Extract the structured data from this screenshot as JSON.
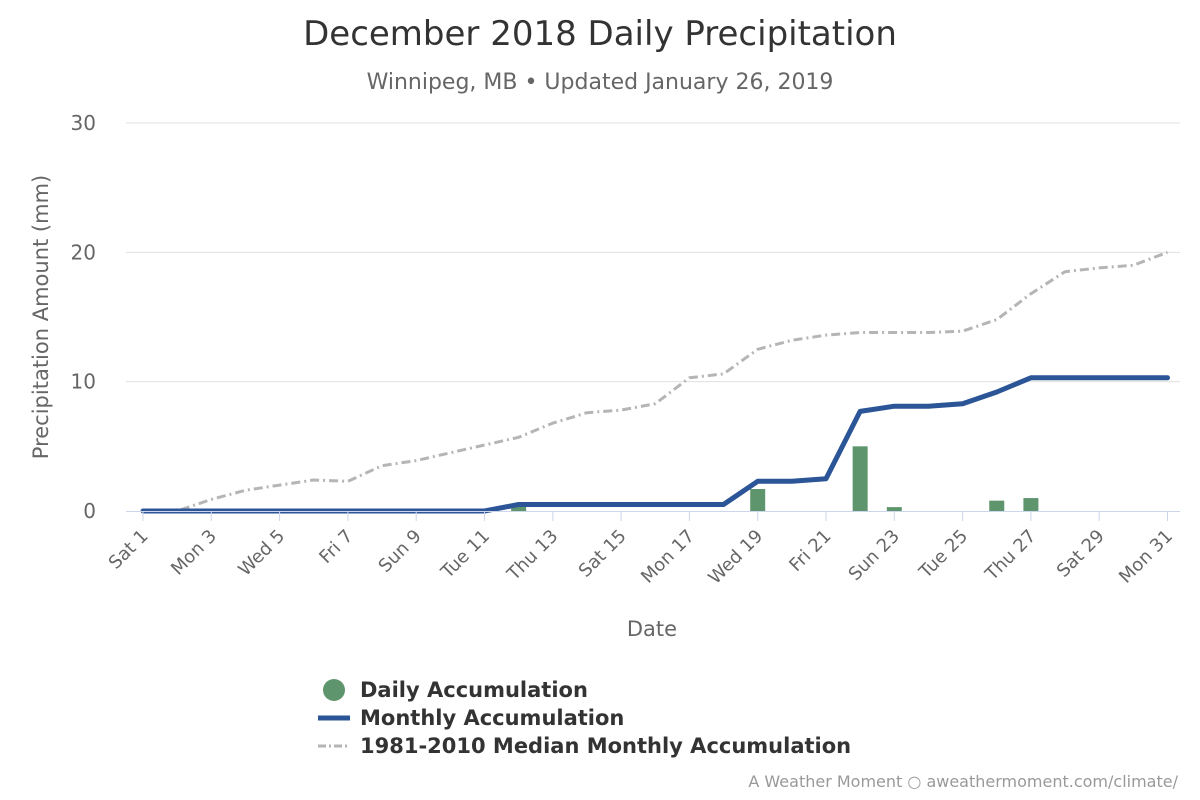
{
  "title": "December 2018 Daily Precipitation",
  "subtitle": "Winnipeg, MB • Updated January 26, 2019",
  "credit": "A Weather Moment ○ aweathermoment.com/climate/",
  "colors": {
    "daily": "#5f956c",
    "monthly": "#2b5596",
    "median": "#b5b5b5",
    "grid": "#e0e0e0",
    "axis": "#ccd6eb",
    "text": "#666666"
  },
  "chart_data": {
    "type": "bar+line",
    "xlabel": "Date",
    "ylabel": "Precipitation Amount (mm)",
    "ylim": [
      0,
      30
    ],
    "yticks": [
      0,
      10,
      20,
      30
    ],
    "grid": true,
    "legend_position": "bottom",
    "x": [
      1,
      2,
      3,
      4,
      5,
      6,
      7,
      8,
      9,
      10,
      11,
      12,
      13,
      14,
      15,
      16,
      17,
      18,
      19,
      20,
      21,
      22,
      23,
      24,
      25,
      26,
      27,
      28,
      29,
      30,
      31
    ],
    "xtick_labels": [
      "Sat 1",
      "Mon 3",
      "Wed 5",
      "Fri 7",
      "Sun 9",
      "Tue 11",
      "Thu 13",
      "Sat 15",
      "Mon 17",
      "Wed 19",
      "Fri 21",
      "Sun 23",
      "Tue 25",
      "Thu 27",
      "Sat 29",
      "Mon 31"
    ],
    "series": [
      {
        "name": "Daily Accumulation",
        "type": "bar",
        "values": [
          0,
          0,
          0,
          0,
          0,
          0,
          0,
          0,
          0,
          0,
          0,
          0.4,
          0,
          0,
          0,
          0,
          0,
          0,
          1.7,
          0,
          0,
          5.0,
          0.3,
          0,
          0,
          0.8,
          1.0,
          0,
          0,
          0,
          0
        ]
      },
      {
        "name": "Monthly Accumulation",
        "type": "line",
        "values": [
          0,
          0,
          0,
          0,
          0,
          0,
          0,
          0,
          0,
          0,
          0,
          0.5,
          0.5,
          0.5,
          0.5,
          0.5,
          0.5,
          0.5,
          2.3,
          2.3,
          2.5,
          7.7,
          8.1,
          8.1,
          8.3,
          9.2,
          10.3,
          10.3,
          10.3,
          10.3,
          10.3
        ]
      },
      {
        "name": "1981-2010 Median Monthly Accumulation",
        "type": "line",
        "style": "dash-dot",
        "values": [
          0,
          0,
          0.9,
          1.6,
          2.0,
          2.4,
          2.3,
          3.5,
          3.9,
          4.5,
          5.1,
          5.7,
          6.8,
          7.6,
          7.8,
          8.3,
          10.3,
          10.6,
          12.5,
          13.2,
          13.6,
          13.8,
          13.8,
          13.8,
          13.9,
          14.8,
          16.8,
          18.5,
          18.8,
          19.0,
          20.0
        ]
      }
    ]
  }
}
